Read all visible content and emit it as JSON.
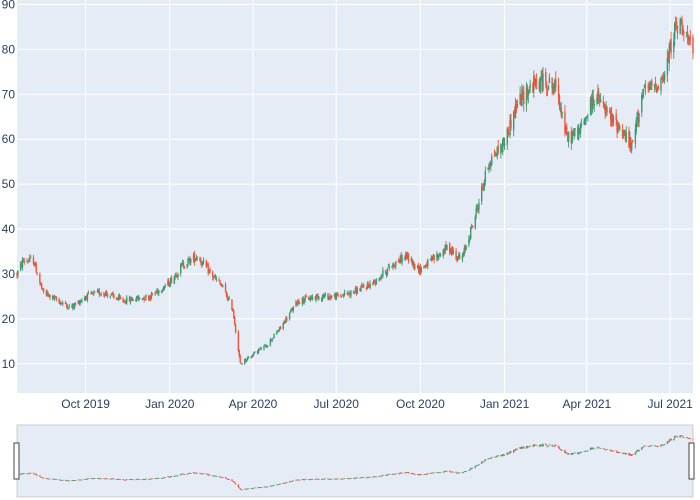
{
  "chart_data": {
    "type": "candlestick",
    "colors": {
      "increasing": "#3d9970",
      "decreasing": "#ef553b",
      "plot_background": "#e5ecf6",
      "grid": "#ffffff",
      "tick_text": "#2a3f5f"
    },
    "grid": true,
    "range_slider": true,
    "y_range": [
      3.5,
      91
    ],
    "y_ticks": [
      10,
      20,
      30,
      40,
      50,
      60,
      70,
      80,
      90
    ],
    "x_range": [
      "2019-07-18",
      "2021-07-26"
    ],
    "x_ticks": [
      {
        "date": "2019-10-01",
        "label": "Oct 2019"
      },
      {
        "date": "2020-01-01",
        "label": "Jan 2020"
      },
      {
        "date": "2020-04-01",
        "label": "Apr 2020"
      },
      {
        "date": "2020-07-01",
        "label": "Jul 2020"
      },
      {
        "date": "2020-10-01",
        "label": "Oct 2020"
      },
      {
        "date": "2021-01-01",
        "label": "Jan 2021"
      },
      {
        "date": "2021-04-01",
        "label": "Apr 2021"
      },
      {
        "date": "2021-07-01",
        "label": "Jul 2021"
      }
    ],
    "close_trend": [
      [
        "2019-07-18",
        30.0
      ],
      [
        "2019-07-25",
        33.0
      ],
      [
        "2019-08-05",
        33.0
      ],
      [
        "2019-08-15",
        26.0
      ],
      [
        "2019-09-01",
        24.0
      ],
      [
        "2019-09-15",
        22.5
      ],
      [
        "2019-10-01",
        25.0
      ],
      [
        "2019-10-20",
        26.0
      ],
      [
        "2019-11-10",
        24.0
      ],
      [
        "2019-12-10",
        25.0
      ],
      [
        "2019-12-31",
        28.0
      ],
      [
        "2020-01-15",
        32.0
      ],
      [
        "2020-01-31",
        34.0
      ],
      [
        "2020-02-15",
        30.0
      ],
      [
        "2020-02-28",
        27.0
      ],
      [
        "2020-03-10",
        22.0
      ],
      [
        "2020-03-18",
        10.0
      ],
      [
        "2020-03-31",
        12.0
      ],
      [
        "2020-04-15",
        14.0
      ],
      [
        "2020-05-01",
        18.0
      ],
      [
        "2020-05-20",
        24.0
      ],
      [
        "2020-06-10",
        25.0
      ],
      [
        "2020-07-01",
        25.0
      ],
      [
        "2020-07-20",
        26.0
      ],
      [
        "2020-08-10",
        28.0
      ],
      [
        "2020-08-31",
        32.0
      ],
      [
        "2020-09-15",
        34.0
      ],
      [
        "2020-09-30",
        31.0
      ],
      [
        "2020-10-20",
        34.0
      ],
      [
        "2020-10-31",
        36.0
      ],
      [
        "2020-11-15",
        33.0
      ],
      [
        "2020-11-30",
        43.0
      ],
      [
        "2020-12-15",
        55.0
      ],
      [
        "2020-12-31",
        59.0
      ],
      [
        "2021-01-15",
        68.0
      ],
      [
        "2021-01-31",
        72.0
      ],
      [
        "2021-02-15",
        73.0
      ],
      [
        "2021-02-28",
        71.0
      ],
      [
        "2021-03-10",
        60.0
      ],
      [
        "2021-03-25",
        62.0
      ],
      [
        "2021-04-10",
        70.0
      ],
      [
        "2021-04-25",
        65.0
      ],
      [
        "2021-05-10",
        62.0
      ],
      [
        "2021-05-20",
        58.0
      ],
      [
        "2021-05-31",
        70.0
      ],
      [
        "2021-06-15",
        72.0
      ],
      [
        "2021-06-25",
        74.0
      ],
      [
        "2021-07-05",
        84.0
      ],
      [
        "2021-07-15",
        86.0
      ],
      [
        "2021-07-26",
        78.0
      ]
    ]
  }
}
